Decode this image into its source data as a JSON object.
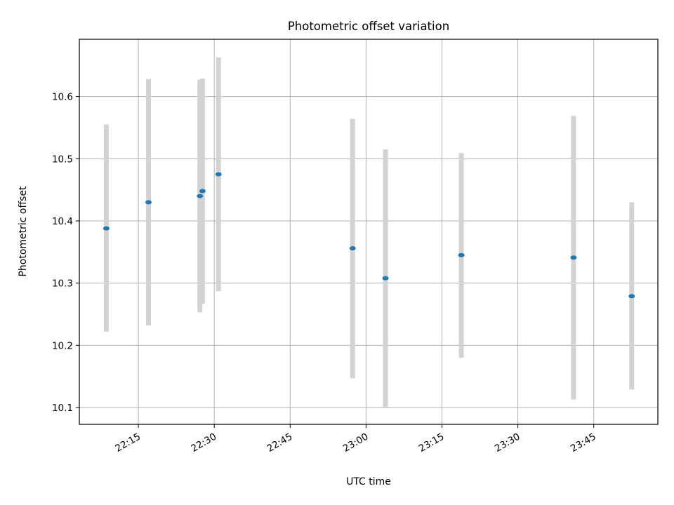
{
  "chart_data": {
    "type": "scatter",
    "title": "Photometric offset variation",
    "xlabel": "UTC time",
    "ylabel": "Photometric offset",
    "x_ticks": [
      "22:15",
      "22:30",
      "22:45",
      "23:00",
      "23:15",
      "23:30",
      "23:45"
    ],
    "y_ticks": [
      "10.1",
      "10.2",
      "10.3",
      "10.4",
      "10.5",
      "10.6"
    ],
    "y_tick_values": [
      10.1,
      10.2,
      10.3,
      10.4,
      10.5,
      10.6
    ],
    "xlim": [
      "22:03:20",
      "23:57:40"
    ],
    "ylim": [
      10.073,
      10.692
    ],
    "grid": true,
    "point_color": "#1f77b4",
    "errorbar_color": "#d3d3d3",
    "points": [
      {
        "time": "22:08:40",
        "value": 10.388,
        "err_low": 10.222,
        "err_high": 10.555
      },
      {
        "time": "22:17:00",
        "value": 10.43,
        "err_low": 10.232,
        "err_high": 10.628
      },
      {
        "time": "22:27:10",
        "value": 10.44,
        "err_low": 10.253,
        "err_high": 10.627
      },
      {
        "time": "22:27:40",
        "value": 10.448,
        "err_low": 10.267,
        "err_high": 10.629
      },
      {
        "time": "22:30:50",
        "value": 10.475,
        "err_low": 10.287,
        "err_high": 10.663
      },
      {
        "time": "22:57:20",
        "value": 10.356,
        "err_low": 10.147,
        "err_high": 10.564
      },
      {
        "time": "23:03:50",
        "value": 10.308,
        "err_low": 10.101,
        "err_high": 10.515
      },
      {
        "time": "23:18:50",
        "value": 10.345,
        "err_low": 10.18,
        "err_high": 10.509
      },
      {
        "time": "23:41:00",
        "value": 10.341,
        "err_low": 10.113,
        "err_high": 10.569
      },
      {
        "time": "23:52:30",
        "value": 10.279,
        "err_low": 10.129,
        "err_high": 10.43
      }
    ]
  }
}
